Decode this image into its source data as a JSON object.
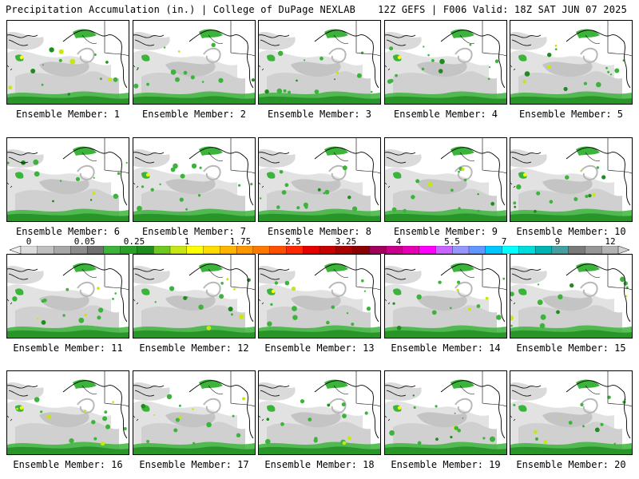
{
  "header": {
    "left": "Precipitation Accumulation (in.) | College of DuPage NEXLAB",
    "right": "12Z GEFS | F006 Valid: 18Z SAT JUN 07 2025"
  },
  "panels": [
    {
      "label": "Ensemble Member: 1"
    },
    {
      "label": "Ensemble Member: 2"
    },
    {
      "label": "Ensemble Member: 3"
    },
    {
      "label": "Ensemble Member: 4"
    },
    {
      "label": "Ensemble Member: 5"
    },
    {
      "label": "Ensemble Member: 6"
    },
    {
      "label": "Ensemble Member: 7"
    },
    {
      "label": "Ensemble Member: 8"
    },
    {
      "label": "Ensemble Member: 9"
    },
    {
      "label": "Ensemble Member: 10"
    },
    {
      "label": "Ensemble Member: 11"
    },
    {
      "label": "Ensemble Member: 12"
    },
    {
      "label": "Ensemble Member: 13"
    },
    {
      "label": "Ensemble Member: 14"
    },
    {
      "label": "Ensemble Member: 15"
    },
    {
      "label": "Ensemble Member: 16"
    },
    {
      "label": "Ensemble Member: 17"
    },
    {
      "label": "Ensemble Member: 18"
    },
    {
      "label": "Ensemble Member: 19"
    },
    {
      "label": "Ensemble Member: 20"
    }
  ],
  "colorbar": {
    "tick_labels": [
      "0",
      "0.05",
      "0.25",
      "1",
      "1.75",
      "2.5",
      "3.25",
      "4",
      "5.5",
      "7",
      "9",
      "12"
    ],
    "colors": [
      "#f0f0f0",
      "#dcdcdc",
      "#c0c0c0",
      "#a8a8a8",
      "#8c8c8c",
      "#707070",
      "#3cb43c",
      "#2aa02a",
      "#1e8c1e",
      "#6ec81e",
      "#c8e614",
      "#ffff00",
      "#ffdc00",
      "#ffb400",
      "#ff9600",
      "#ff7800",
      "#ff5000",
      "#ff2800",
      "#e60000",
      "#c80000",
      "#aa0000",
      "#8c0000",
      "#a0005a",
      "#c8008c",
      "#e600b4",
      "#ff00ff",
      "#c864ff",
      "#9696ff",
      "#6496ff",
      "#00c8ff",
      "#00ffff",
      "#00dcdc",
      "#00b4b4",
      "#46a0a0",
      "#7a7a7a",
      "#969696",
      "#b4b4b4",
      "#d2d2d2"
    ]
  }
}
